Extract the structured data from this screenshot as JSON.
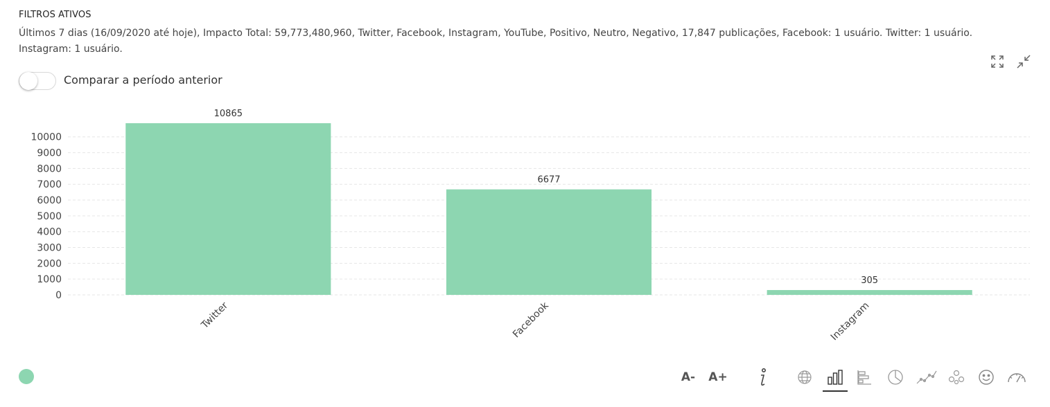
{
  "filters": {
    "title": "FILTROS ATIVOS",
    "text": "Últimos 7 dias (16/09/2020 até hoje), Impacto Total: 59,773,480,960, Twitter, Facebook, Instagram, YouTube, Positivo, Neutro, Negativo, 17,847 publicações, Facebook: 1 usuário. Twitter: 1 usuário. Instagram: 1 usuário."
  },
  "compare_toggle": {
    "label": "Comparar a período anterior",
    "checked": false
  },
  "toolbar": {
    "font_decrease": "A-",
    "font_increase": "A+",
    "icons": [
      "info-icon",
      "globe-icon",
      "bar-chart-icon",
      "horizontal-bar-icon",
      "pie-chart-icon",
      "line-chart-icon",
      "network-icon",
      "emoji-icon",
      "gauge-icon"
    ],
    "active": "bar-chart-icon"
  },
  "colors": {
    "bar": "#8dd6b1",
    "grid": "#e6e6e6",
    "text": "#333333"
  },
  "chart_data": {
    "type": "bar",
    "categories": [
      "Twitter",
      "Facebook",
      "Instagram"
    ],
    "values": [
      10865,
      6677,
      305
    ],
    "yticks": [
      0,
      1000,
      2000,
      3000,
      4000,
      5000,
      6000,
      7000,
      8000,
      9000,
      10000
    ],
    "ylim": [
      0,
      10865
    ],
    "grid": true,
    "data_labels": true
  }
}
